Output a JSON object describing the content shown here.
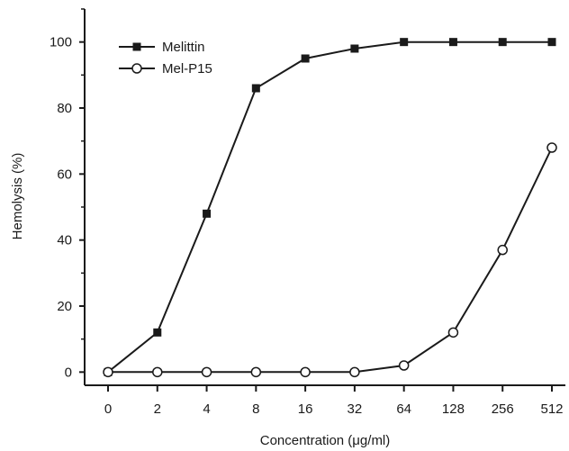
{
  "chart_data": {
    "type": "line",
    "title": "",
    "xlabel": "Concentration (μg/ml)",
    "ylabel": "Hemolysis (%)",
    "categories": [
      "0",
      "2",
      "4",
      "8",
      "16",
      "32",
      "64",
      "128",
      "256",
      "512"
    ],
    "ylim": [
      -4,
      110
    ],
    "yticks": [
      0,
      20,
      40,
      60,
      80,
      100
    ],
    "grid": false,
    "legend_position": "top-left",
    "series": [
      {
        "name": "Melittin",
        "marker": "filled-square",
        "color": "#1a1a1a",
        "values": [
          0,
          12,
          48,
          86,
          95,
          98,
          100,
          100,
          100,
          100
        ]
      },
      {
        "name": "Mel-P15",
        "marker": "open-circle",
        "color": "#1a1a1a",
        "values": [
          0,
          0,
          0,
          0,
          0,
          0,
          2,
          12,
          37,
          68
        ]
      }
    ]
  }
}
